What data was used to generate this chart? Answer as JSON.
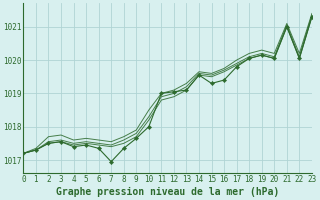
{
  "hours": [
    0,
    1,
    2,
    3,
    4,
    5,
    6,
    7,
    8,
    9,
    10,
    11,
    12,
    13,
    14,
    15,
    16,
    17,
    18,
    19,
    20,
    21,
    22,
    23
  ],
  "series_main": [
    1017.2,
    1017.3,
    1017.5,
    1017.55,
    1017.4,
    1017.45,
    1017.35,
    1016.95,
    1017.35,
    1017.65,
    1018.0,
    1019.0,
    1019.05,
    1019.1,
    1019.55,
    1019.3,
    1019.4,
    1019.8,
    1020.05,
    1020.15,
    1020.05,
    1021.0,
    1020.05,
    1021.3
  ],
  "series_smooth": [
    [
      1017.2,
      1017.35,
      1017.7,
      1017.75,
      1017.6,
      1017.65,
      1017.6,
      1017.55,
      1017.7,
      1017.9,
      1018.5,
      1019.0,
      1019.1,
      1019.3,
      1019.65,
      1019.6,
      1019.75,
      1020.0,
      1020.2,
      1020.3,
      1020.2,
      1021.1,
      1020.2,
      1021.4
    ],
    [
      1017.2,
      1017.3,
      1017.55,
      1017.6,
      1017.5,
      1017.55,
      1017.5,
      1017.45,
      1017.6,
      1017.8,
      1018.3,
      1018.9,
      1019.0,
      1019.2,
      1019.6,
      1019.55,
      1019.7,
      1019.9,
      1020.1,
      1020.2,
      1020.1,
      1021.05,
      1020.1,
      1021.35
    ],
    [
      1017.2,
      1017.3,
      1017.5,
      1017.55,
      1017.45,
      1017.5,
      1017.45,
      1017.4,
      1017.5,
      1017.7,
      1018.2,
      1018.8,
      1018.9,
      1019.1,
      1019.55,
      1019.5,
      1019.65,
      1019.85,
      1020.05,
      1020.15,
      1020.05,
      1021.0,
      1020.05,
      1021.3
    ]
  ],
  "line_color": "#2d6a2d",
  "marker_color": "#2d6a2d",
  "background_color": "#d8f0ef",
  "grid_color": "#b0d4d4",
  "axis_color": "#2d6a2d",
  "xlabel": "Graphe pression niveau de la mer (hPa)",
  "ylim": [
    1016.6,
    1021.7
  ],
  "yticks": [
    1017,
    1018,
    1019,
    1020,
    1021
  ],
  "xticks": [
    0,
    1,
    2,
    3,
    4,
    5,
    6,
    7,
    8,
    9,
    10,
    11,
    12,
    13,
    14,
    15,
    16,
    17,
    18,
    19,
    20,
    21,
    22,
    23
  ],
  "tick_fontsize": 5.5,
  "label_fontsize": 7
}
